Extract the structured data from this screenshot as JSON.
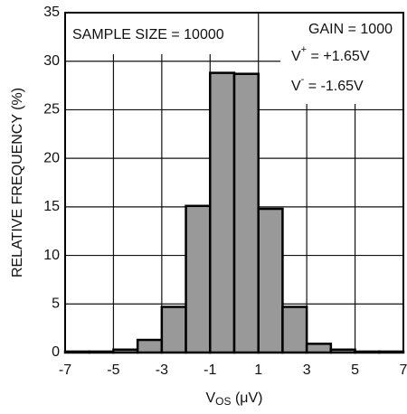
{
  "chart_data": {
    "type": "histogram",
    "ylabel": "RELATIVE FREQUENCY (%)",
    "xlabel": [
      "V",
      "OS",
      " (μV)"
    ],
    "annotations": {
      "sample": "SAMPLE SIZE = 10000",
      "gain": "GAIN = 1000",
      "vplus": [
        "V",
        "+",
        " = +1.65V"
      ],
      "vminus": [
        "V",
        "-",
        " = -1.65V"
      ]
    },
    "bins": [
      -7,
      -6,
      -5,
      -4,
      -3,
      -2,
      -1,
      0,
      1,
      2,
      3,
      4,
      5,
      6,
      7
    ],
    "values": [
      0.1,
      0.1,
      0.3,
      1.3,
      4.7,
      15.1,
      28.8,
      28.7,
      14.8,
      4.7,
      0.9,
      0.3,
      0.1,
      0.1
    ],
    "color": "#999999",
    "xlim": [
      -7,
      7
    ],
    "xticks": [
      -7,
      -5,
      -3,
      -1,
      1,
      3,
      5,
      7
    ],
    "ylim": [
      0,
      35
    ],
    "yticks": [
      0,
      5,
      10,
      15,
      20,
      25,
      30,
      35
    ],
    "grid": true
  }
}
